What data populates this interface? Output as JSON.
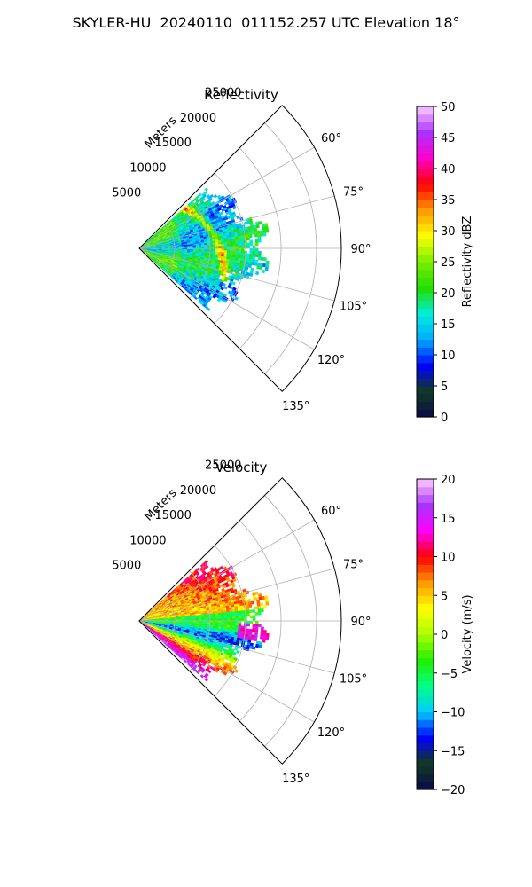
{
  "figure": {
    "title": "SKYLER-HU  20240110  011152.257 UTC Elevation 18°"
  },
  "chart_data": [
    {
      "type": "heatmap",
      "projection": "polar-sector",
      "title": "Reflectivity",
      "radial_label": "Meters",
      "radial_ticks": [
        5000,
        10000,
        15000,
        20000,
        25000
      ],
      "radial_tick_labels": [
        "5000",
        "10000",
        "15000",
        "20000",
        "25000"
      ],
      "range_max": 28500,
      "azimuth_ticks": [
        60,
        75,
        90,
        105,
        120,
        135
      ],
      "azimuth_tick_labels": [
        "60°",
        "75°",
        "90°",
        "105°",
        "120°",
        "135°"
      ],
      "azimuth_range": [
        45,
        135
      ],
      "grid": true,
      "colorbar": {
        "label": "Reflectivity dBZ",
        "vmin": 0,
        "vmax": 50,
        "ticks": [
          0,
          5,
          10,
          15,
          20,
          25,
          30,
          35,
          40,
          45,
          50
        ],
        "tick_labels": [
          "0",
          "5",
          "10",
          "15",
          "20",
          "25",
          "30",
          "35",
          "40",
          "45",
          "50"
        ],
        "colormap": [
          "#0a0a4a",
          "#123a20",
          "#0000ff",
          "#00aaff",
          "#00eedd",
          "#22dd00",
          "#77ee00",
          "#ffff00",
          "#ff9900",
          "#ff0000",
          "#ff00cc",
          "#aa33ff",
          "#ffccff"
        ]
      }
    },
    {
      "type": "heatmap",
      "projection": "polar-sector",
      "title": "Velocity",
      "radial_label": "Meters",
      "radial_ticks": [
        5000,
        10000,
        15000,
        20000,
        25000
      ],
      "radial_tick_labels": [
        "5000",
        "10000",
        "15000",
        "20000",
        "25000"
      ],
      "range_max": 28500,
      "azimuth_ticks": [
        60,
        75,
        90,
        105,
        120,
        135
      ],
      "azimuth_tick_labels": [
        "60°",
        "75°",
        "90°",
        "105°",
        "120°",
        "135°"
      ],
      "azimuth_range": [
        45,
        135
      ],
      "grid": true,
      "colorbar": {
        "label": "Velocity (m/s)",
        "vmin": -20,
        "vmax": 20,
        "ticks": [
          -20,
          -15,
          -10,
          -5,
          0,
          5,
          10,
          15,
          20
        ],
        "tick_labels": [
          "−20",
          "−15",
          "−10",
          "−5",
          "0",
          "5",
          "10",
          "15",
          "20"
        ],
        "colormap": [
          "#0a0a4a",
          "#123a20",
          "#0000ff",
          "#00ccff",
          "#00ff88",
          "#22ee00",
          "#aaff00",
          "#ffff00",
          "#ff9900",
          "#ff0000",
          "#ff00ff",
          "#aa33ff",
          "#ffccff"
        ]
      }
    }
  ]
}
